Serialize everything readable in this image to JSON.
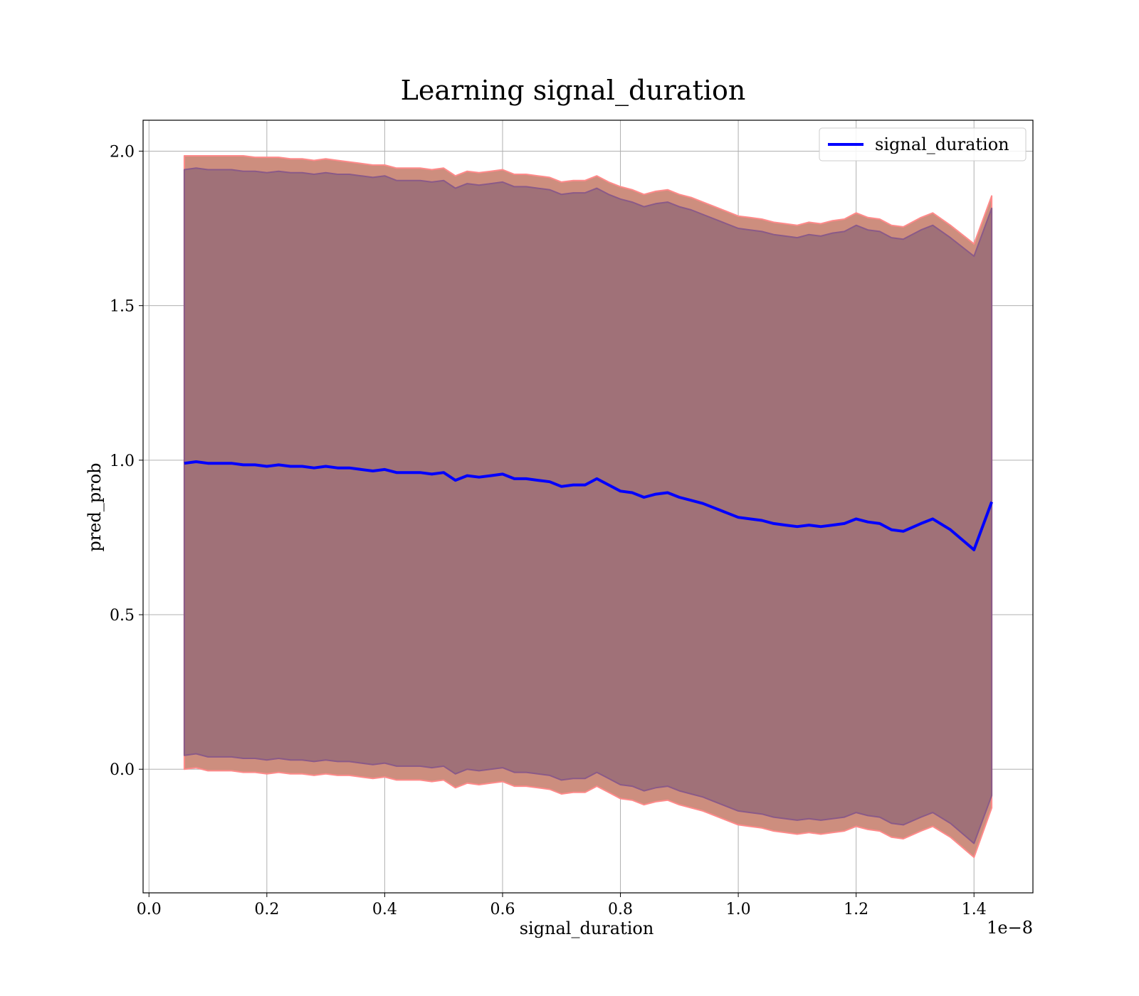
{
  "chart_data": {
    "type": "line",
    "title": "Learning signal_duration",
    "xlabel": "signal_duration",
    "ylabel": "pred_prob",
    "x_offset_label": "1e−8",
    "x_scale": 1e-08,
    "xlim": [
      -0.01,
      1.5
    ],
    "ylim": [
      -0.4,
      2.1
    ],
    "xticks": [
      0.0,
      0.2,
      0.4,
      0.6,
      0.8,
      1.0,
      1.2,
      1.4
    ],
    "xtick_labels": [
      "0.0",
      "0.2",
      "0.4",
      "0.6",
      "0.8",
      "1.0",
      "1.2",
      "1.4"
    ],
    "yticks": [
      0.0,
      0.5,
      1.0,
      1.5,
      2.0
    ],
    "ytick_labels": [
      "0.0",
      "0.5",
      "1.0",
      "1.5",
      "2.0"
    ],
    "grid": true,
    "legend_position": "top-right",
    "series": [
      {
        "name": "signal_duration",
        "color": "#0000ff",
        "x": [
          0.06,
          0.08,
          0.1,
          0.12,
          0.14,
          0.16,
          0.18,
          0.2,
          0.22,
          0.24,
          0.26,
          0.28,
          0.3,
          0.32,
          0.34,
          0.36,
          0.38,
          0.4,
          0.42,
          0.44,
          0.46,
          0.48,
          0.5,
          0.52,
          0.54,
          0.56,
          0.58,
          0.6,
          0.62,
          0.64,
          0.66,
          0.68,
          0.7,
          0.72,
          0.74,
          0.76,
          0.78,
          0.8,
          0.82,
          0.84,
          0.86,
          0.88,
          0.9,
          0.92,
          0.94,
          0.96,
          0.98,
          1.0,
          1.02,
          1.04,
          1.06,
          1.08,
          1.1,
          1.12,
          1.14,
          1.16,
          1.18,
          1.2,
          1.22,
          1.24,
          1.26,
          1.28,
          1.31,
          1.33,
          1.36,
          1.4,
          1.43
        ],
        "values": [
          0.99,
          0.995,
          0.99,
          0.99,
          0.99,
          0.985,
          0.985,
          0.98,
          0.985,
          0.98,
          0.98,
          0.975,
          0.98,
          0.975,
          0.975,
          0.97,
          0.965,
          0.97,
          0.96,
          0.96,
          0.96,
          0.955,
          0.96,
          0.935,
          0.95,
          0.945,
          0.95,
          0.955,
          0.94,
          0.94,
          0.935,
          0.93,
          0.915,
          0.92,
          0.92,
          0.94,
          0.92,
          0.9,
          0.895,
          0.88,
          0.89,
          0.895,
          0.88,
          0.87,
          0.86,
          0.845,
          0.83,
          0.815,
          0.81,
          0.805,
          0.795,
          0.79,
          0.785,
          0.79,
          0.785,
          0.79,
          0.795,
          0.81,
          0.8,
          0.795,
          0.775,
          0.77,
          0.795,
          0.81,
          0.775,
          0.71,
          0.865
        ]
      }
    ],
    "bands": [
      {
        "name": "outer",
        "fill": "#cd8e7e",
        "edge": "#ff8a8a",
        "upper": [
          1.985,
          1.985,
          1.985,
          1.985,
          1.985,
          1.985,
          1.98,
          1.98,
          1.98,
          1.975,
          1.975,
          1.97,
          1.975,
          1.97,
          1.965,
          1.96,
          1.955,
          1.955,
          1.945,
          1.945,
          1.945,
          1.94,
          1.945,
          1.92,
          1.935,
          1.93,
          1.935,
          1.94,
          1.925,
          1.925,
          1.92,
          1.915,
          1.9,
          1.905,
          1.905,
          1.92,
          1.9,
          1.885,
          1.875,
          1.86,
          1.87,
          1.875,
          1.86,
          1.85,
          1.835,
          1.82,
          1.805,
          1.79,
          1.785,
          1.78,
          1.77,
          1.765,
          1.76,
          1.77,
          1.765,
          1.775,
          1.78,
          1.8,
          1.785,
          1.78,
          1.76,
          1.755,
          1.785,
          1.8,
          1.76,
          1.7,
          1.855
        ],
        "lower": [
          0.0,
          0.005,
          -0.005,
          -0.005,
          -0.005,
          -0.01,
          -0.01,
          -0.015,
          -0.01,
          -0.015,
          -0.015,
          -0.02,
          -0.015,
          -0.02,
          -0.02,
          -0.025,
          -0.03,
          -0.025,
          -0.035,
          -0.035,
          -0.035,
          -0.04,
          -0.035,
          -0.06,
          -0.045,
          -0.05,
          -0.045,
          -0.04,
          -0.055,
          -0.055,
          -0.06,
          -0.065,
          -0.08,
          -0.075,
          -0.075,
          -0.055,
          -0.075,
          -0.095,
          -0.1,
          -0.115,
          -0.105,
          -0.1,
          -0.115,
          -0.125,
          -0.135,
          -0.15,
          -0.165,
          -0.18,
          -0.185,
          -0.19,
          -0.2,
          -0.205,
          -0.21,
          -0.205,
          -0.21,
          -0.205,
          -0.2,
          -0.185,
          -0.195,
          -0.2,
          -0.22,
          -0.225,
          -0.2,
          -0.185,
          -0.22,
          -0.285,
          -0.125
        ]
      },
      {
        "name": "inner",
        "fill": "#a07178",
        "edge": "#8a5a88",
        "upper": [
          1.94,
          1.945,
          1.94,
          1.94,
          1.94,
          1.935,
          1.935,
          1.93,
          1.935,
          1.93,
          1.93,
          1.925,
          1.93,
          1.925,
          1.925,
          1.92,
          1.915,
          1.92,
          1.905,
          1.905,
          1.905,
          1.9,
          1.905,
          1.88,
          1.895,
          1.89,
          1.895,
          1.9,
          1.885,
          1.885,
          1.88,
          1.875,
          1.86,
          1.865,
          1.865,
          1.88,
          1.86,
          1.845,
          1.835,
          1.82,
          1.83,
          1.835,
          1.82,
          1.81,
          1.795,
          1.78,
          1.765,
          1.75,
          1.745,
          1.74,
          1.73,
          1.725,
          1.72,
          1.73,
          1.725,
          1.735,
          1.74,
          1.76,
          1.745,
          1.74,
          1.72,
          1.715,
          1.745,
          1.76,
          1.72,
          1.66,
          1.815
        ],
        "lower": [
          0.045,
          0.05,
          0.04,
          0.04,
          0.04,
          0.035,
          0.035,
          0.03,
          0.035,
          0.03,
          0.03,
          0.025,
          0.03,
          0.025,
          0.025,
          0.02,
          0.015,
          0.02,
          0.01,
          0.01,
          0.01,
          0.005,
          0.01,
          -0.015,
          0.0,
          -0.005,
          0.0,
          0.005,
          -0.01,
          -0.01,
          -0.015,
          -0.02,
          -0.035,
          -0.03,
          -0.03,
          -0.01,
          -0.03,
          -0.05,
          -0.055,
          -0.07,
          -0.06,
          -0.055,
          -0.07,
          -0.08,
          -0.09,
          -0.105,
          -0.12,
          -0.135,
          -0.14,
          -0.145,
          -0.155,
          -0.16,
          -0.165,
          -0.16,
          -0.165,
          -0.16,
          -0.155,
          -0.14,
          -0.15,
          -0.155,
          -0.175,
          -0.18,
          -0.155,
          -0.14,
          -0.175,
          -0.24,
          -0.085
        ]
      }
    ]
  }
}
